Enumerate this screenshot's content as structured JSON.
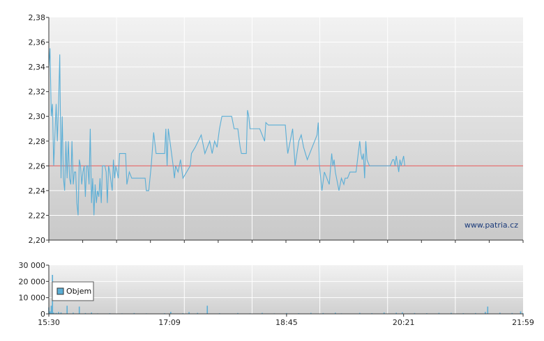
{
  "watermark": "www.patria.cz",
  "colors": {
    "price_line": "#5aaed6",
    "reference_line": "#e06060",
    "volume_bar": "#5aaed6",
    "grid": "#ffffff",
    "axis": "#333333"
  },
  "chart_data": [
    {
      "type": "line",
      "title": "",
      "xlabel": "",
      "ylabel": "",
      "ylim": [
        2.2,
        2.38
      ],
      "grid": true,
      "y_ticks": [
        "2,20",
        "2,22",
        "2,24",
        "2,26",
        "2,28",
        "2,30",
        "2,32",
        "2,34",
        "2,36",
        "2,38"
      ],
      "reference_value": 2.26,
      "series": [
        {
          "points": [
            [
              "15:30",
              2.34
            ],
            [
              "15:31",
              2.355
            ],
            [
              "15:32",
              2.3
            ],
            [
              "15:33",
              2.31
            ],
            [
              "15:34",
              2.26
            ],
            [
              "15:36",
              2.31
            ],
            [
              "15:37",
              2.28
            ],
            [
              "15:38",
              2.31
            ],
            [
              "15:39",
              2.35
            ],
            [
              "15:40",
              2.25
            ],
            [
              "15:41",
              2.3
            ],
            [
              "15:42",
              2.25
            ],
            [
              "15:43",
              2.24
            ],
            [
              "15:44",
              2.28
            ],
            [
              "15:45",
              2.25
            ],
            [
              "15:46",
              2.28
            ],
            [
              "15:47",
              2.25
            ],
            [
              "15:48",
              2.245
            ],
            [
              "15:49",
              2.28
            ],
            [
              "15:50",
              2.245
            ],
            [
              "15:51",
              2.255
            ],
            [
              "15:52",
              2.255
            ],
            [
              "15:53",
              2.23
            ],
            [
              "15:54",
              2.22
            ],
            [
              "15:55",
              2.265
            ],
            [
              "15:56",
              2.26
            ],
            [
              "15:57",
              2.245
            ],
            [
              "15:58",
              2.255
            ],
            [
              "15:59",
              2.26
            ],
            [
              "16:00",
              2.235
            ],
            [
              "16:01",
              2.26
            ],
            [
              "16:02",
              2.26
            ],
            [
              "16:03",
              2.245
            ],
            [
              "16:04",
              2.29
            ],
            [
              "16:05",
              2.23
            ],
            [
              "16:06",
              2.25
            ],
            [
              "16:07",
              2.22
            ],
            [
              "16:08",
              2.245
            ],
            [
              "16:09",
              2.23
            ],
            [
              "16:10",
              2.24
            ],
            [
              "16:11",
              2.235
            ],
            [
              "16:12",
              2.25
            ],
            [
              "16:13",
              2.23
            ],
            [
              "16:14",
              2.26
            ],
            [
              "16:16",
              2.26
            ],
            [
              "16:17",
              2.255
            ],
            [
              "16:18",
              2.23
            ],
            [
              "16:19",
              2.26
            ],
            [
              "16:20",
              2.255
            ],
            [
              "16:22",
              2.24
            ],
            [
              "16:23",
              2.265
            ],
            [
              "16:24",
              2.25
            ],
            [
              "16:25",
              2.26
            ],
            [
              "16:26",
              2.255
            ],
            [
              "16:27",
              2.25
            ],
            [
              "16:28",
              2.27
            ],
            [
              "16:33",
              2.27
            ],
            [
              "16:34",
              2.245
            ],
            [
              "16:36",
              2.255
            ],
            [
              "16:38",
              2.25
            ],
            [
              "16:44",
              2.25
            ],
            [
              "16:49",
              2.25
            ],
            [
              "16:50",
              2.24
            ],
            [
              "16:52",
              2.24
            ],
            [
              "16:54",
              2.26
            ],
            [
              "16:56",
              2.287
            ],
            [
              "16:58",
              2.27
            ],
            [
              "17:05",
              2.27
            ],
            [
              "17:06",
              2.29
            ],
            [
              "17:07",
              2.26
            ],
            [
              "17:08",
              2.29
            ],
            [
              "17:12",
              2.26
            ],
            [
              "17:13",
              2.25
            ],
            [
              "17:14",
              2.26
            ],
            [
              "17:16",
              2.255
            ],
            [
              "17:18",
              2.265
            ],
            [
              "17:20",
              2.25
            ],
            [
              "17:26",
              2.26
            ],
            [
              "17:27",
              2.27
            ],
            [
              "17:30",
              2.275
            ],
            [
              "17:35",
              2.285
            ],
            [
              "17:38",
              2.27
            ],
            [
              "17:42",
              2.28
            ],
            [
              "17:44",
              2.27
            ],
            [
              "17:46",
              2.28
            ],
            [
              "17:48",
              2.275
            ],
            [
              "17:50",
              2.29
            ],
            [
              "17:52",
              2.3
            ],
            [
              "18:00",
              2.3
            ],
            [
              "18:02",
              2.29
            ],
            [
              "18:05",
              2.29
            ],
            [
              "18:07",
              2.275
            ],
            [
              "18:08",
              2.27
            ],
            [
              "18:12",
              2.27
            ],
            [
              "18:13",
              2.305
            ],
            [
              "18:14",
              2.3
            ],
            [
              "18:15",
              2.29
            ],
            [
              "18:23",
              2.29
            ],
            [
              "18:27",
              2.28
            ],
            [
              "18:28",
              2.295
            ],
            [
              "18:30",
              2.293
            ],
            [
              "18:44",
              2.293
            ],
            [
              "18:45",
              2.28
            ],
            [
              "18:46",
              2.27
            ],
            [
              "18:50",
              2.29
            ],
            [
              "18:52",
              2.26
            ],
            [
              "18:55",
              2.28
            ],
            [
              "18:57",
              2.285
            ],
            [
              "18:59",
              2.275
            ],
            [
              "19:02",
              2.265
            ],
            [
              "19:10",
              2.285
            ],
            [
              "19:11",
              2.295
            ],
            [
              "19:12",
              2.26
            ],
            [
              "19:14",
              2.24
            ],
            [
              "19:16",
              2.255
            ],
            [
              "19:18",
              2.25
            ],
            [
              "19:20",
              2.245
            ],
            [
              "19:22",
              2.27
            ],
            [
              "19:23",
              2.26
            ],
            [
              "19:24",
              2.265
            ],
            [
              "19:25",
              2.255
            ],
            [
              "19:27",
              2.245
            ],
            [
              "19:28",
              2.24
            ],
            [
              "19:30",
              2.25
            ],
            [
              "19:32",
              2.245
            ],
            [
              "19:33",
              2.25
            ],
            [
              "19:35",
              2.25
            ],
            [
              "19:37",
              2.255
            ],
            [
              "19:42",
              2.255
            ],
            [
              "19:45",
              2.28
            ],
            [
              "19:46",
              2.27
            ],
            [
              "19:47",
              2.265
            ],
            [
              "19:48",
              2.27
            ],
            [
              "19:49",
              2.25
            ],
            [
              "19:50",
              2.28
            ],
            [
              "19:51",
              2.265
            ],
            [
              "19:53",
              2.26
            ],
            [
              "20:10",
              2.26
            ],
            [
              "20:12",
              2.265
            ],
            [
              "20:13",
              2.265
            ],
            [
              "20:14",
              2.26
            ],
            [
              "20:15",
              2.268
            ],
            [
              "20:17",
              2.255
            ],
            [
              "20:18",
              2.265
            ],
            [
              "20:19",
              2.26
            ],
            [
              "20:21",
              2.268
            ],
            [
              "20:22",
              2.26
            ]
          ]
        }
      ]
    },
    {
      "type": "bar",
      "title": "",
      "xlabel": "",
      "ylabel": "",
      "ylim": [
        0,
        30000
      ],
      "grid": true,
      "y_ticks": [
        "0",
        "10 000",
        "20 000",
        "30 000"
      ],
      "x_ticks": [
        "15:30",
        "17:09",
        "18:45",
        "20:21",
        "21:59"
      ],
      "legend": {
        "position": "top-left",
        "entries": [
          "Objem"
        ]
      },
      "series": [
        {
          "name": "Objem",
          "points": [
            [
              "15:30",
              4000
            ],
            [
              "15:31",
              1500
            ],
            [
              "15:32",
              5000
            ],
            [
              "15:33",
              24000
            ],
            [
              "15:34",
              800
            ],
            [
              "15:36",
              600
            ],
            [
              "15:38",
              1200
            ],
            [
              "15:40",
              900
            ],
            [
              "15:45",
              5000
            ],
            [
              "15:50",
              700
            ],
            [
              "15:55",
              4500
            ],
            [
              "16:00",
              500
            ],
            [
              "16:05",
              800
            ],
            [
              "16:10",
              300
            ],
            [
              "16:20",
              400
            ],
            [
              "16:30",
              300
            ],
            [
              "16:40",
              500
            ],
            [
              "16:50",
              300
            ],
            [
              "17:05",
              400
            ],
            [
              "17:10",
              1200
            ],
            [
              "17:20",
              400
            ],
            [
              "17:25",
              1100
            ],
            [
              "17:32",
              600
            ],
            [
              "17:40",
              5000
            ],
            [
              "17:50",
              400
            ],
            [
              "18:05",
              500
            ],
            [
              "18:15",
              300
            ],
            [
              "18:25",
              600
            ],
            [
              "18:35",
              300
            ],
            [
              "18:45",
              500
            ],
            [
              "18:55",
              400
            ],
            [
              "19:05",
              600
            ],
            [
              "19:15",
              500
            ],
            [
              "19:25",
              700
            ],
            [
              "19:30",
              300
            ],
            [
              "19:45",
              600
            ],
            [
              "19:55",
              400
            ],
            [
              "20:05",
              800
            ],
            [
              "20:15",
              700
            ],
            [
              "20:20",
              900
            ],
            [
              "20:30",
              500
            ],
            [
              "20:40",
              400
            ],
            [
              "20:50",
              600
            ],
            [
              "21:00",
              600
            ],
            [
              "21:10",
              400
            ],
            [
              "21:20",
              500
            ],
            [
              "21:28",
              1200
            ],
            [
              "21:30",
              4500
            ],
            [
              "21:40",
              700
            ],
            [
              "21:50",
              500
            ],
            [
              "21:57",
              1500
            ],
            [
              "21:59",
              400
            ]
          ]
        }
      ]
    }
  ]
}
